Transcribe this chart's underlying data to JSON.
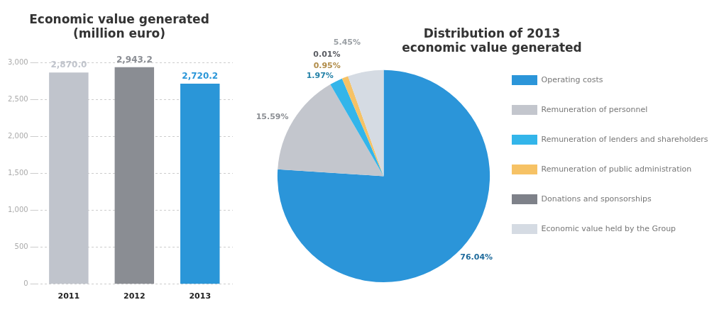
{
  "chart_data": [
    {
      "type": "bar",
      "title": "Economic value generated\n(million euro)",
      "categories": [
        "2011",
        "2012",
        "2013"
      ],
      "values": [
        2870.0,
        2943.2,
        2720.2
      ],
      "colors": [
        "#c0c4cc",
        "#8a8d93",
        "#2a96d8"
      ],
      "value_labels": [
        "2,870.0",
        "2,943.2",
        "2,720.2"
      ],
      "ylim": [
        0,
        3000
      ],
      "yticks": [
        {
          "value": 0,
          "label": "0"
        },
        {
          "value": 500,
          "label": "500"
        },
        {
          "value": 1000,
          "label": "1,000"
        },
        {
          "value": 1500,
          "label": "1,500"
        },
        {
          "value": 2000,
          "label": "2,000"
        },
        {
          "value": 2500,
          "label": "2,500"
        },
        {
          "value": 3000,
          "label": "3,000"
        }
      ],
      "grid": "y",
      "legend": false
    },
    {
      "type": "pie",
      "title": "Distribution of 2013\neconomic value generated",
      "categories": [
        "Operating costs",
        "Remuneration of personnel",
        "Remuneration of lenders and shareholders",
        "Remuneration of public administration",
        "Donations and sponsorships",
        "Economic value held by the Group"
      ],
      "values": [
        76.04,
        15.59,
        1.97,
        0.95,
        0.01,
        5.45
      ],
      "colors": [
        "#2b95d9",
        "#c3c6cd",
        "#33b5ea",
        "#f6c265",
        "#7e8189",
        "#d5dbe3"
      ],
      "value_labels": [
        "76.04%",
        "15.59%",
        "1.97%",
        "0.95%",
        "0.01%",
        "5.45%"
      ],
      "legend": "right"
    }
  ]
}
